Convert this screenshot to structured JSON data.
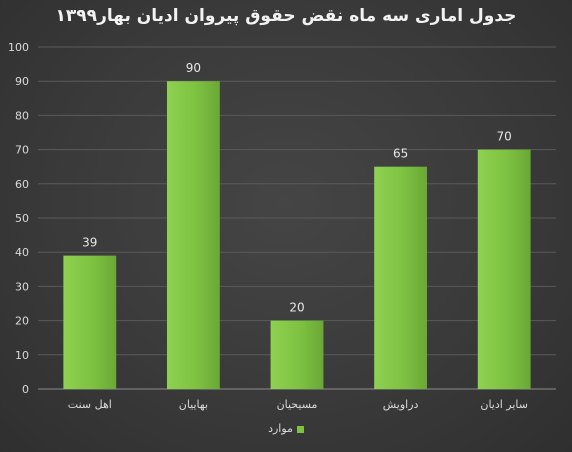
{
  "chart_data": {
    "type": "bar",
    "title": "جدول اماری سه ماه نقض حقوق پیروان ادیان بهار۱۳۹۹",
    "categories": [
      "اهل سنت",
      "بهاییان",
      "مسیحیان",
      "دراویش",
      "سایر ادیان"
    ],
    "series": [
      {
        "name": "موارد",
        "values": [
          39,
          90,
          20,
          65,
          70
        ]
      }
    ],
    "ylim": [
      0,
      100
    ],
    "yticks": [
      0,
      10,
      20,
      30,
      40,
      50,
      60,
      70,
      80,
      90,
      100
    ],
    "grid": true,
    "legend": "bottom",
    "bar_color": "#7ec242",
    "bar_color_dark": "#5f9e2f"
  }
}
